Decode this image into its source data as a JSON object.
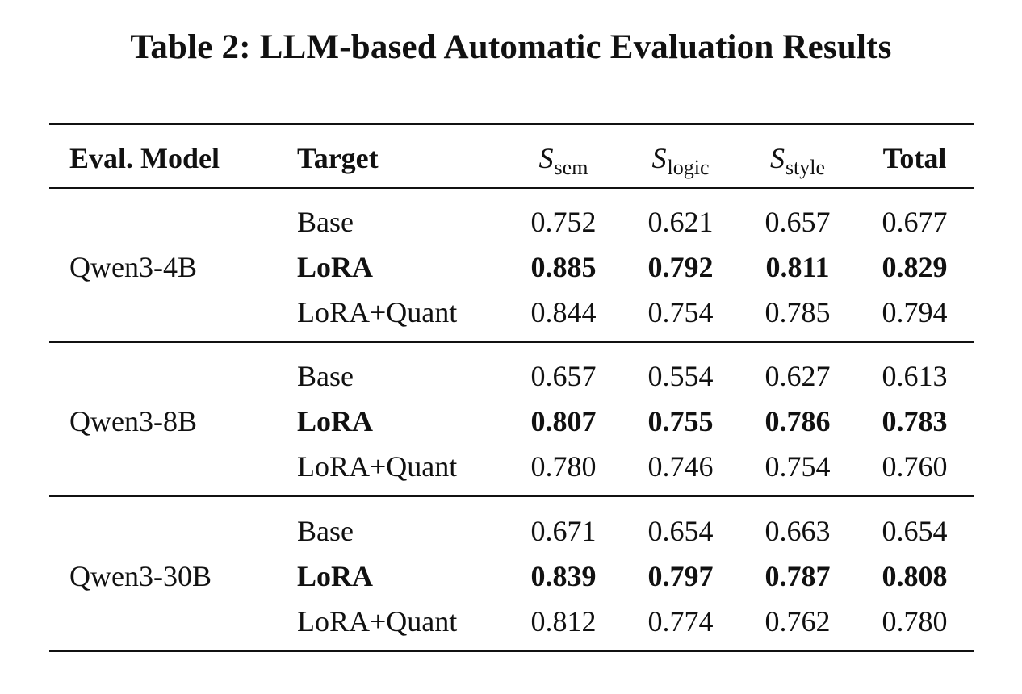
{
  "caption": "Table 2: LLM-based Automatic Evaluation Results",
  "headers": {
    "model": "Eval. Model",
    "target": "Target",
    "sem": {
      "symbol": "S",
      "sub": "sem"
    },
    "logic": {
      "symbol": "S",
      "sub": "logic"
    },
    "style": {
      "symbol": "S",
      "sub": "style"
    },
    "total": "Total"
  },
  "groups": [
    {
      "model": "Qwen3-4B",
      "rows": [
        {
          "target": "Base",
          "sem": "0.752",
          "logic": "0.621",
          "style": "0.657",
          "total": "0.677",
          "bold": false
        },
        {
          "target": "LoRA",
          "sem": "0.885",
          "logic": "0.792",
          "style": "0.811",
          "total": "0.829",
          "bold": true
        },
        {
          "target": "LoRA+Quant",
          "sem": "0.844",
          "logic": "0.754",
          "style": "0.785",
          "total": "0.794",
          "bold": false
        }
      ]
    },
    {
      "model": "Qwen3-8B",
      "rows": [
        {
          "target": "Base",
          "sem": "0.657",
          "logic": "0.554",
          "style": "0.627",
          "total": "0.613",
          "bold": false
        },
        {
          "target": "LoRA",
          "sem": "0.807",
          "logic": "0.755",
          "style": "0.786",
          "total": "0.783",
          "bold": true
        },
        {
          "target": "LoRA+Quant",
          "sem": "0.780",
          "logic": "0.746",
          "style": "0.754",
          "total": "0.760",
          "bold": false
        }
      ]
    },
    {
      "model": "Qwen3-30B",
      "rows": [
        {
          "target": "Base",
          "sem": "0.671",
          "logic": "0.654",
          "style": "0.663",
          "total": "0.654",
          "bold": false
        },
        {
          "target": "LoRA",
          "sem": "0.839",
          "logic": "0.797",
          "style": "0.787",
          "total": "0.808",
          "bold": true
        },
        {
          "target": "LoRA+Quant",
          "sem": "0.812",
          "logic": "0.774",
          "style": "0.762",
          "total": "0.780",
          "bold": false
        }
      ]
    }
  ]
}
